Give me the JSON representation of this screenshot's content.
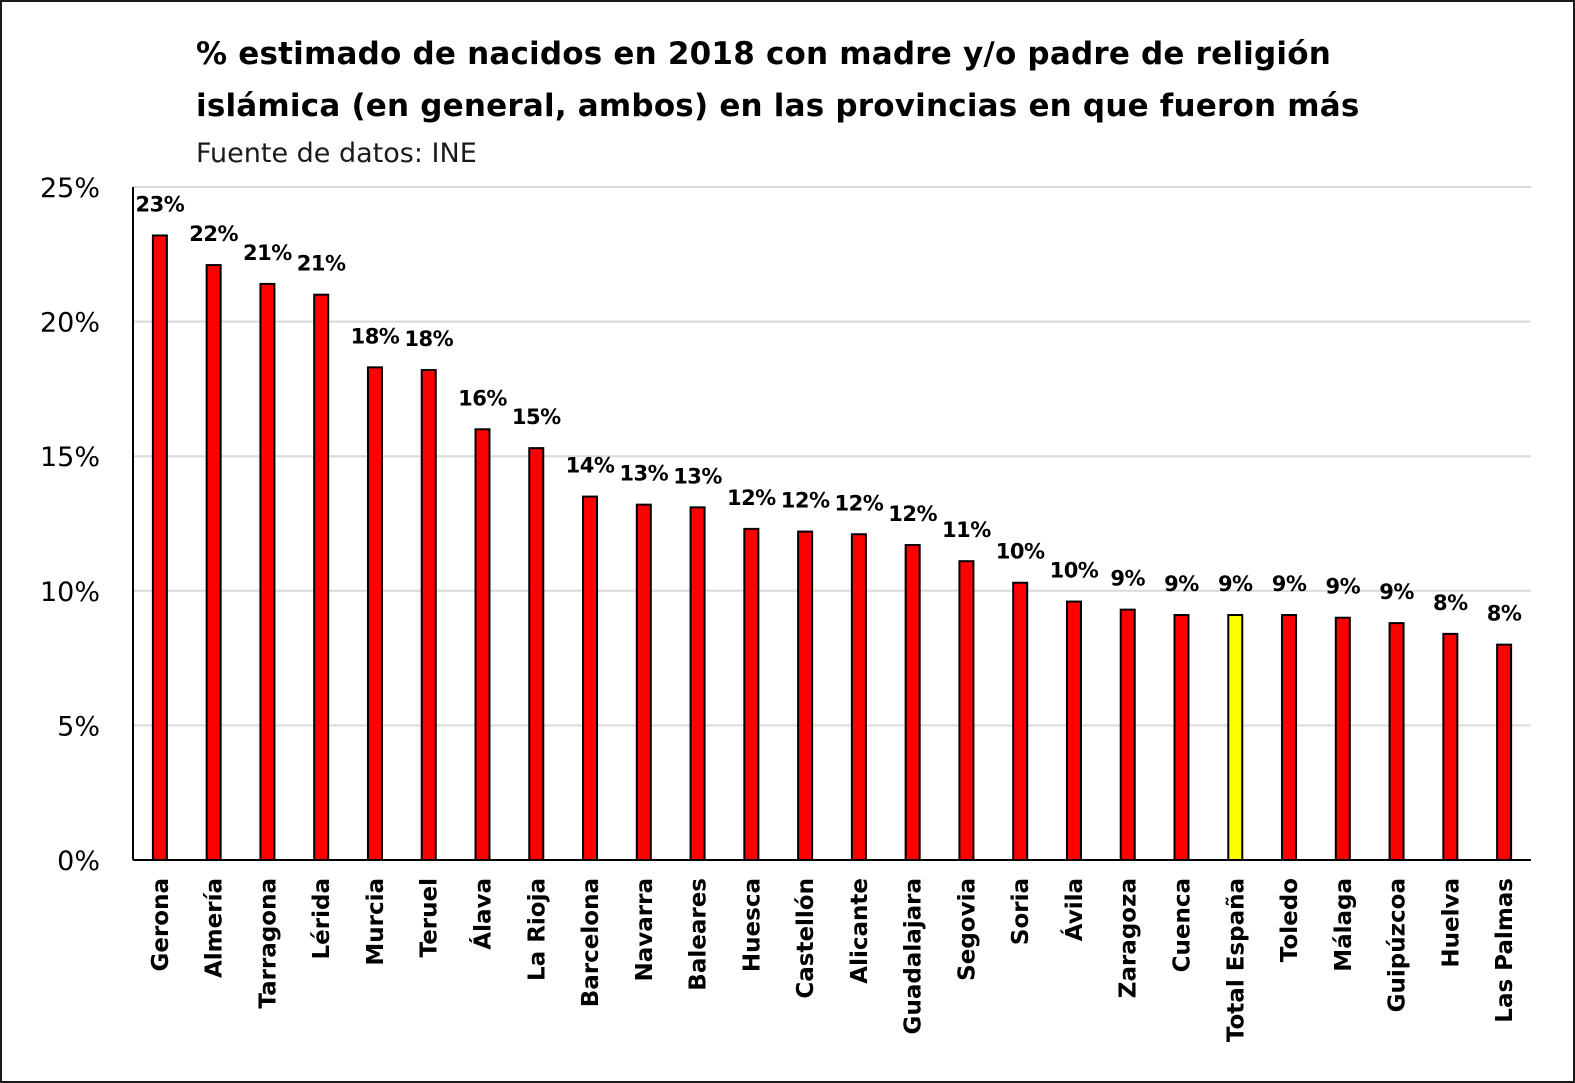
{
  "chart_data": {
    "type": "bar",
    "title_lines": [
      "% estimado de nacidos en 2018 con madre y/o padre de religión",
      "islámica (en general, ambos) en las provincias en que fueron más"
    ],
    "subtitle": "Fuente de datos: INE",
    "xlabel": "",
    "ylabel": "",
    "ylim": [
      0,
      25
    ],
    "yticks": [
      "0%",
      "5%",
      "10%",
      "15%",
      "20%",
      "25%"
    ],
    "grid": true,
    "legend": "none",
    "categories": [
      "Gerona",
      "Almería",
      "Tarragona",
      "Lérida",
      "Murcia",
      "Teruel",
      "Álava",
      "La Rioja",
      "Barcelona",
      "Navarra",
      "Baleares",
      "Huesca",
      "Castellón",
      "Alicante",
      "Guadalajara",
      "Segovia",
      "Soria",
      "Ávila",
      "Zaragoza",
      "Cuenca",
      "Total España",
      "Toledo",
      "Málaga",
      "Guipúzcoa",
      "Huelva",
      "Las Palmas"
    ],
    "values": [
      23.2,
      22.1,
      21.4,
      21.0,
      18.3,
      18.2,
      16.0,
      15.3,
      13.5,
      13.2,
      13.1,
      12.3,
      12.2,
      12.1,
      11.7,
      11.1,
      10.3,
      9.6,
      9.3,
      9.1,
      9.1,
      9.1,
      9.0,
      8.8,
      8.4,
      8.0
    ],
    "data_labels": [
      "23%",
      "22%",
      "21%",
      "21%",
      "18%",
      "18%",
      "16%",
      "15%",
      "14%",
      "13%",
      "13%",
      "12%",
      "12%",
      "12%",
      "12%",
      "11%",
      "10%",
      "10%",
      "9%",
      "9%",
      "9%",
      "9%",
      "9%",
      "9%",
      "8%",
      "8%"
    ],
    "bar_color": "#ff0000",
    "highlight_category": "Total España",
    "highlight_color": "#ffff00",
    "bar_outline_color": "#000000",
    "grid_color": "#d9d9d9"
  }
}
